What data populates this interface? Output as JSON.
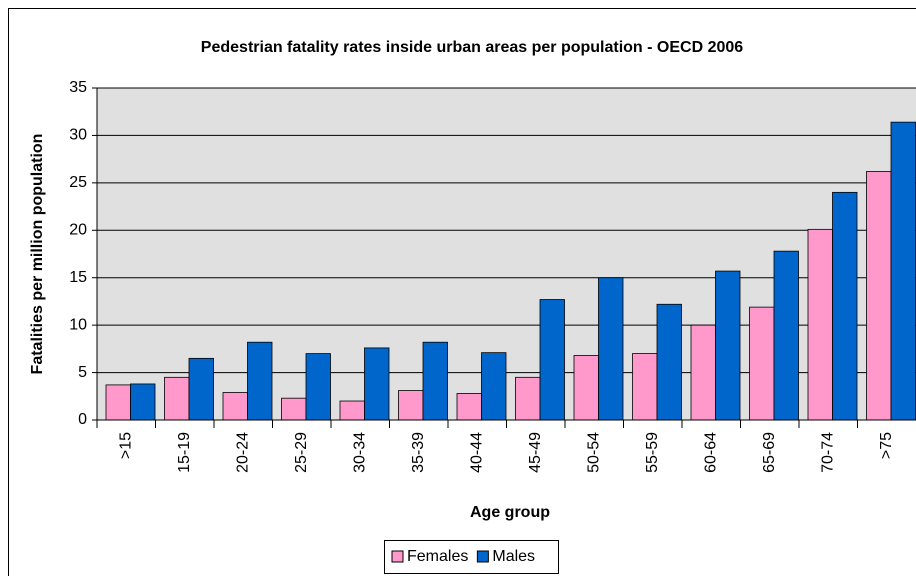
{
  "chart_data": {
    "type": "bar",
    "title": "Pedestrian fatality rates inside urban areas per population - OECD 2006",
    "x_label": "Age group",
    "y_label": "Fatalities per million population",
    "categories": [
      ">15",
      "15-19",
      "20-24",
      "25-29",
      "30-34",
      "35-39",
      "40-44",
      "45-49",
      "50-54",
      "55-59",
      "60-64",
      "65-69",
      "70-74",
      ">75"
    ],
    "series": [
      {
        "name": "Females",
        "color": "#ff99cc",
        "values": [
          3.7,
          4.5,
          2.9,
          2.3,
          2.0,
          3.1,
          2.8,
          4.5,
          6.8,
          7.0,
          10.0,
          11.9,
          20.1,
          26.2
        ]
      },
      {
        "name": "Males",
        "color": "#0066cc",
        "values": [
          3.8,
          6.5,
          8.2,
          7.0,
          7.6,
          8.2,
          7.1,
          12.7,
          15.0,
          12.2,
          15.7,
          17.8,
          24.0,
          31.4
        ]
      }
    ],
    "ylim": [
      0,
      35
    ],
    "yticks": [
      0,
      5,
      10,
      15,
      20,
      25,
      30,
      35
    ],
    "grid": true,
    "legend": "bottom"
  }
}
